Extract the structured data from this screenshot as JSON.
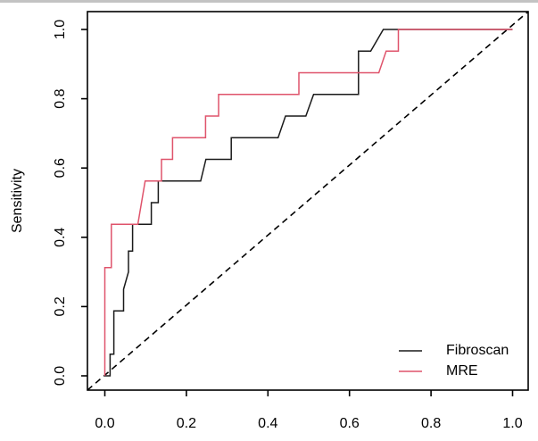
{
  "chart_data": {
    "type": "line",
    "subtype": "roc-curves",
    "title": "",
    "xlabel": "",
    "ylabel": "Sensitivity",
    "xlim": [
      0.0,
      1.0
    ],
    "ylim": [
      0.0,
      1.0
    ],
    "grid": false,
    "x_ticks": [
      "0.0",
      "0.2",
      "0.4",
      "0.6",
      "0.8",
      "1.0"
    ],
    "y_ticks": [
      "0.0",
      "0.2",
      "0.4",
      "0.6",
      "0.8",
      "1.0"
    ],
    "colors": {
      "fibroscan": "#1a1a1a",
      "mre": "#df536b",
      "axis": "#000000"
    },
    "reference_line": {
      "style": "dashed",
      "color": "#000000",
      "from": [
        0,
        0
      ],
      "to": [
        1,
        1
      ]
    },
    "legend_position": "bottom-right",
    "legend": [
      {
        "label": "Fibroscan",
        "color": "#1a1a1a"
      },
      {
        "label": "MRE",
        "color": "#df536b"
      }
    ],
    "series": [
      {
        "name": "Fibroscan",
        "color": "#1a1a1a",
        "points": [
          [
            0.0,
            0.0
          ],
          [
            0.013,
            0.0
          ],
          [
            0.013,
            0.0625
          ],
          [
            0.022,
            0.0625
          ],
          [
            0.022,
            0.1875
          ],
          [
            0.046,
            0.1875
          ],
          [
            0.046,
            0.25
          ],
          [
            0.058,
            0.3
          ],
          [
            0.058,
            0.36
          ],
          [
            0.068,
            0.36
          ],
          [
            0.068,
            0.4375
          ],
          [
            0.114,
            0.4375
          ],
          [
            0.114,
            0.5
          ],
          [
            0.131,
            0.5
          ],
          [
            0.131,
            0.5625
          ],
          [
            0.235,
            0.5625
          ],
          [
            0.248,
            0.625
          ],
          [
            0.31,
            0.625
          ],
          [
            0.31,
            0.6875
          ],
          [
            0.425,
            0.6875
          ],
          [
            0.443,
            0.75
          ],
          [
            0.493,
            0.75
          ],
          [
            0.512,
            0.8125
          ],
          [
            0.622,
            0.8125
          ],
          [
            0.622,
            0.9375
          ],
          [
            0.652,
            0.9375
          ],
          [
            0.683,
            1.0
          ],
          [
            1.0,
            1.0
          ]
        ]
      },
      {
        "name": "MRE",
        "color": "#df536b",
        "points": [
          [
            0.0,
            0.0
          ],
          [
            0.0,
            0.3125
          ],
          [
            0.016,
            0.3125
          ],
          [
            0.016,
            0.4375
          ],
          [
            0.081,
            0.4375
          ],
          [
            0.099,
            0.5625
          ],
          [
            0.139,
            0.5625
          ],
          [
            0.139,
            0.625
          ],
          [
            0.166,
            0.625
          ],
          [
            0.166,
            0.6875
          ],
          [
            0.247,
            0.6875
          ],
          [
            0.247,
            0.75
          ],
          [
            0.279,
            0.75
          ],
          [
            0.279,
            0.8125
          ],
          [
            0.476,
            0.8125
          ],
          [
            0.476,
            0.875
          ],
          [
            0.672,
            0.875
          ],
          [
            0.69,
            0.9375
          ],
          [
            0.72,
            0.9375
          ],
          [
            0.72,
            1.0
          ],
          [
            1.0,
            1.0
          ]
        ]
      }
    ]
  }
}
